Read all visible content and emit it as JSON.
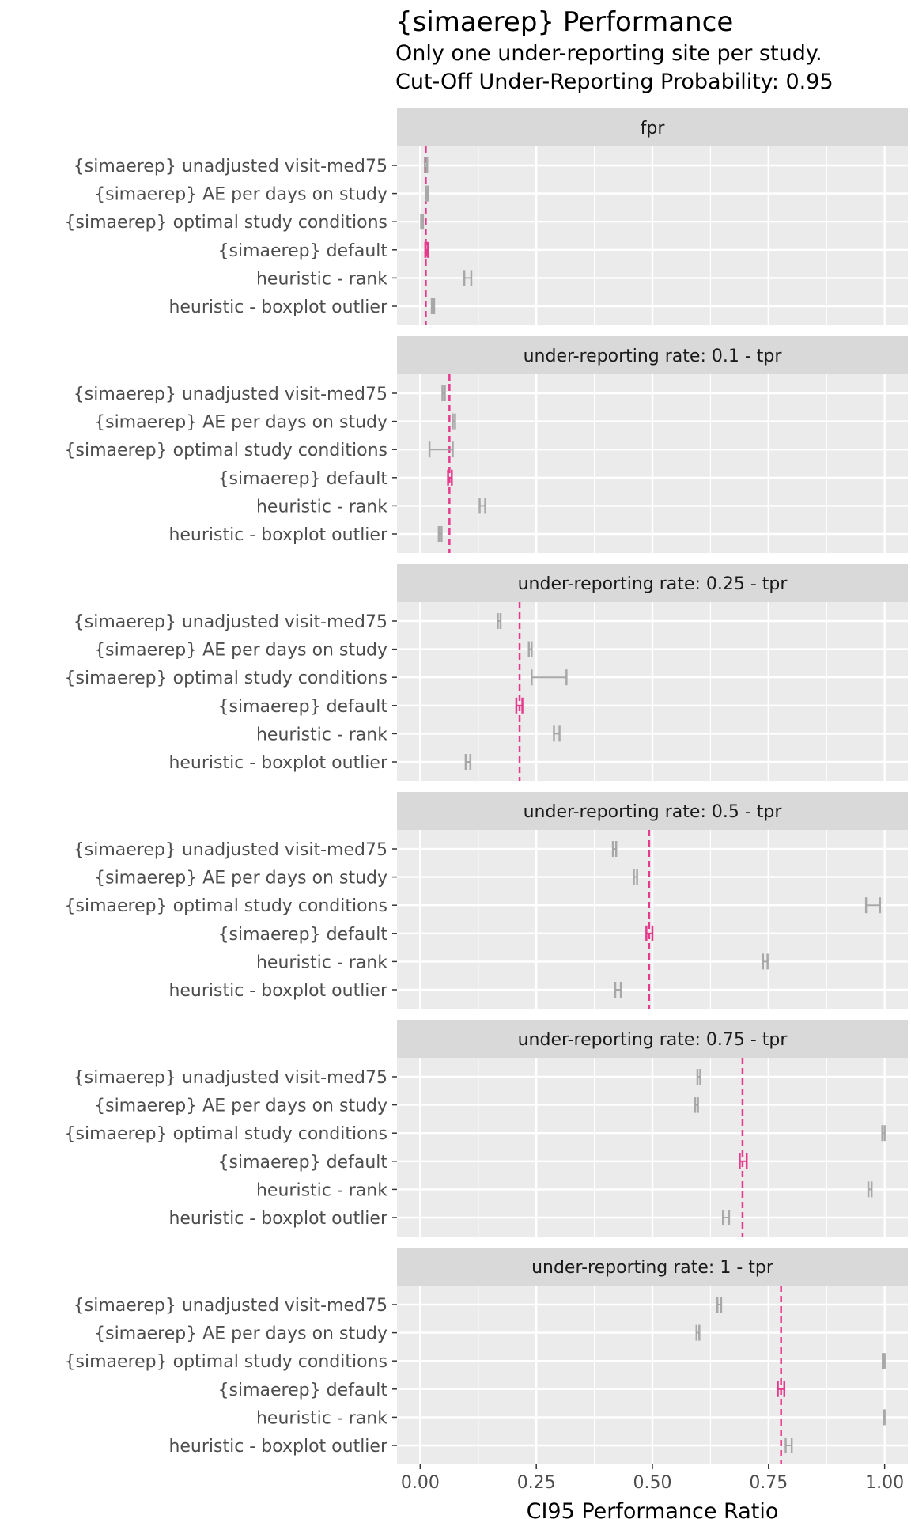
{
  "chart_data": {
    "type": "errorbar",
    "title": "{simaerep} Performance",
    "subtitle_lines": [
      "Only one under-reporting site per study.",
      "Cut-Off Under-Reporting Probability: 0.95"
    ],
    "xlabel": "CI95 Performance Ratio",
    "xlim": [
      -0.05,
      1.05
    ],
    "x_ticks": [
      0.0,
      0.25,
      0.5,
      0.75,
      1.0
    ],
    "x_tick_labels": [
      "0.00",
      "0.25",
      "0.50",
      "0.75",
      "1.00"
    ],
    "grid": true,
    "categories": [
      "{simaerep} unadjusted visit-med75",
      "{simaerep} AE per days on study",
      "{simaerep} optimal study conditions",
      "{simaerep} default",
      "heuristic - rank",
      "heuristic - boxplot outlier"
    ],
    "highlight_category": "{simaerep} default",
    "colors": {
      "default": "#a8a8a8",
      "highlight": "#e63b8c",
      "panel_bg": "#ebebeb",
      "strip_bg": "#d9d9d9",
      "grid": "#ffffff"
    },
    "panels": [
      {
        "label": "fpr",
        "reference": 0.012,
        "intervals": [
          [
            0.01,
            0.015
          ],
          [
            0.012,
            0.016
          ],
          [
            0.002,
            0.006
          ],
          [
            0.011,
            0.016
          ],
          [
            0.095,
            0.11
          ],
          [
            0.025,
            0.03
          ]
        ]
      },
      {
        "label": "under-reporting rate: 0.1 - tpr",
        "reference": 0.063,
        "intervals": [
          [
            0.048,
            0.053
          ],
          [
            0.07,
            0.075
          ],
          [
            0.02,
            0.07
          ],
          [
            0.06,
            0.068
          ],
          [
            0.128,
            0.14
          ],
          [
            0.04,
            0.046
          ]
        ]
      },
      {
        "label": "under-reporting rate: 0.25 - tpr",
        "reference": 0.214,
        "intervals": [
          [
            0.167,
            0.173
          ],
          [
            0.234,
            0.24
          ],
          [
            0.24,
            0.315
          ],
          [
            0.207,
            0.22
          ],
          [
            0.288,
            0.3
          ],
          [
            0.098,
            0.108
          ]
        ]
      },
      {
        "label": "under-reporting rate: 0.5 - tpr",
        "reference": 0.493,
        "intervals": [
          [
            0.415,
            0.422
          ],
          [
            0.46,
            0.467
          ],
          [
            0.96,
            0.99
          ],
          [
            0.487,
            0.5
          ],
          [
            0.738,
            0.748
          ],
          [
            0.42,
            0.432
          ]
        ]
      },
      {
        "label": "under-reporting rate: 0.75 - tpr",
        "reference": 0.694,
        "intervals": [
          [
            0.597,
            0.603
          ],
          [
            0.592,
            0.598
          ],
          [
            0.995,
            1.0
          ],
          [
            0.688,
            0.703
          ],
          [
            0.965,
            0.972
          ],
          [
            0.652,
            0.665
          ]
        ]
      },
      {
        "label": "under-reporting rate: 1 - tpr",
        "reference": 0.777,
        "intervals": [
          [
            0.64,
            0.648
          ],
          [
            0.595,
            0.601
          ],
          [
            0.996,
            1.0
          ],
          [
            0.77,
            0.784
          ],
          [
            0.998,
            1.0
          ],
          [
            0.787,
            0.8
          ]
        ]
      }
    ]
  }
}
